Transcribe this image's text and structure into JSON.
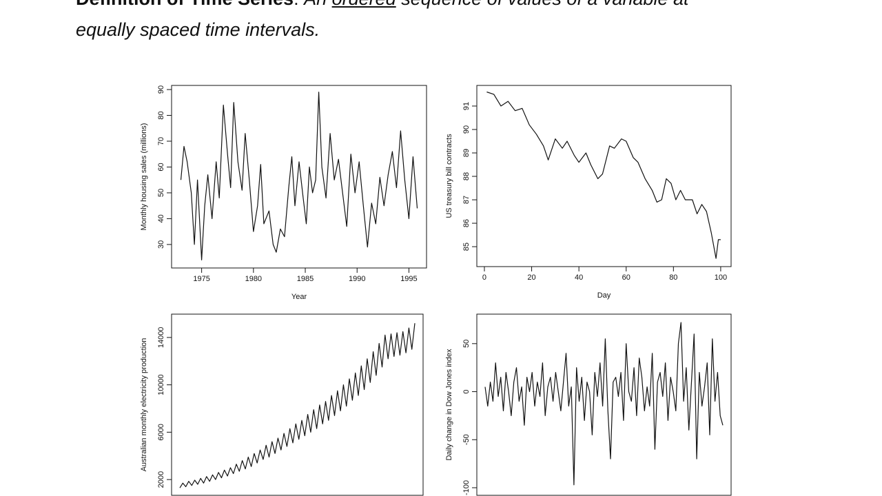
{
  "heading": {
    "segments": [
      "Definition of Time Series",
      ": ",
      "An ",
      "ordered",
      " sequence of values of a variable at",
      "equally spaced time intervals."
    ]
  },
  "chart_data": [
    {
      "type": "line",
      "xlabel": "Year",
      "ylabel": "Monthly housing sales (millions)",
      "x": [
        1973,
        1973.3,
        1973.6,
        1974,
        1974.3,
        1974.6,
        1975,
        1975.3,
        1975.6,
        1976,
        1976.4,
        1976.7,
        1977.1,
        1977.5,
        1977.8,
        1978.1,
        1978.5,
        1978.9,
        1979.2,
        1979.6,
        1980,
        1980.4,
        1980.7,
        1981,
        1981.5,
        1981.9,
        1982.2,
        1982.6,
        1983,
        1983.4,
        1983.7,
        1984,
        1984.4,
        1984.8,
        1985.1,
        1985.4,
        1985.7,
        1986,
        1986.3,
        1986.6,
        1987,
        1987.4,
        1987.8,
        1988.2,
        1988.6,
        1989,
        1989.4,
        1989.8,
        1990.2,
        1990.6,
        1991,
        1991.4,
        1991.8,
        1992.2,
        1992.6,
        1993,
        1993.4,
        1993.8,
        1994.2,
        1994.6,
        1995,
        1995.4,
        1995.8
      ],
      "values": [
        55,
        68,
        62,
        50,
        30,
        55,
        24,
        45,
        57,
        40,
        62,
        48,
        84,
        65,
        52,
        85,
        62,
        51,
        73,
        55,
        35,
        45,
        61,
        38,
        43,
        30,
        27,
        36,
        33,
        52,
        64,
        45,
        62,
        48,
        38,
        60,
        50,
        55,
        89,
        60,
        48,
        73,
        55,
        63,
        50,
        37,
        65,
        50,
        62,
        45,
        29,
        46,
        38,
        56,
        45,
        57,
        66,
        52,
        74,
        55,
        40,
        64,
        44
      ],
      "xlim": [
        1972.1,
        1996.7
      ],
      "ylim": [
        20.9,
        91.6
      ],
      "xticks": [
        1975,
        1980,
        1985,
        1990,
        1995
      ],
      "yticks": [
        30,
        40,
        50,
        60,
        70,
        80,
        90
      ],
      "color": "#111111"
    },
    {
      "type": "line",
      "xlabel": "Day",
      "ylabel": "US treasury bill contracts",
      "x": [
        1,
        4,
        7,
        10,
        13,
        16,
        19,
        22,
        25,
        27,
        30,
        33,
        35,
        38,
        40,
        43,
        45,
        48,
        50,
        53,
        55,
        58,
        60,
        63,
        65,
        68,
        71,
        73,
        75,
        77,
        79,
        81,
        83,
        85,
        88,
        90,
        92,
        94,
        96,
        98,
        99,
        100
      ],
      "values": [
        91.6,
        91.5,
        91.0,
        91.2,
        90.8,
        90.9,
        90.2,
        89.8,
        89.3,
        88.7,
        89.6,
        89.2,
        89.5,
        88.9,
        88.6,
        89.0,
        88.5,
        87.9,
        88.1,
        89.3,
        89.2,
        89.6,
        89.5,
        88.8,
        88.6,
        87.9,
        87.4,
        86.9,
        87.0,
        87.9,
        87.7,
        87.0,
        87.4,
        87.0,
        87.0,
        86.4,
        86.8,
        86.5,
        85.6,
        84.5,
        85.3,
        85.3
      ],
      "xlim": [
        -3.2,
        104.4
      ],
      "ylim": [
        84.15,
        91.88
      ],
      "xticks": [
        0,
        20,
        40,
        60,
        80,
        100
      ],
      "yticks": [
        85,
        86,
        87,
        88,
        89,
        90,
        91
      ],
      "color": "#111111"
    },
    {
      "type": "line",
      "ylabel": "Australian monthly electricity production",
      "values": [
        1300,
        1700,
        1400,
        1850,
        1500,
        1950,
        1600,
        2100,
        1700,
        2250,
        1850,
        2400,
        2000,
        2600,
        2150,
        2800,
        2300,
        3000,
        2500,
        3300,
        2700,
        3600,
        2900,
        3900,
        3100,
        4200,
        3400,
        4500,
        3700,
        4900,
        3900,
        5200,
        4200,
        5500,
        4500,
        5900,
        4800,
        6300,
        5100,
        6700,
        5400,
        7000,
        5700,
        7500,
        6000,
        7900,
        6300,
        8300,
        6700,
        8600,
        7000,
        9100,
        7400,
        9500,
        7800,
        10000,
        8200,
        10500,
        8700,
        11000,
        9100,
        11600,
        9600,
        12200,
        10200,
        12800,
        10800,
        13500,
        11500,
        14200,
        12200,
        14300,
        12400,
        14400,
        12500,
        14500,
        12700,
        14800,
        13000,
        15200
      ],
      "ylim": [
        670,
        15970
      ],
      "yticks": [
        2000,
        6000,
        10000,
        14000
      ],
      "color": "#111111"
    },
    {
      "type": "line",
      "ylabel": "Daily change in Dow Jones index",
      "values": [
        5,
        -15,
        10,
        -10,
        30,
        -5,
        15,
        -20,
        20,
        0,
        -25,
        10,
        25,
        -10,
        5,
        -35,
        15,
        0,
        20,
        -15,
        10,
        -5,
        30,
        -25,
        5,
        15,
        -10,
        20,
        0,
        -20,
        10,
        40,
        -15,
        5,
        -97,
        25,
        -10,
        15,
        -30,
        10,
        0,
        -45,
        20,
        -5,
        30,
        -15,
        55,
        -20,
        -70,
        10,
        15,
        -5,
        20,
        -30,
        50,
        0,
        -10,
        25,
        -25,
        35,
        15,
        -20,
        5,
        -15,
        40,
        -60,
        10,
        20,
        -5,
        30,
        -30,
        15,
        0,
        -20,
        50,
        72,
        -10,
        25,
        -40,
        10,
        60,
        -70,
        20,
        -15,
        5,
        30,
        -45,
        55,
        -10,
        20,
        -25,
        -35
      ],
      "ylim": [
        -107.9,
        80.7
      ],
      "yticks": [
        -100,
        -50,
        0,
        50
      ],
      "color": "#111111"
    }
  ]
}
